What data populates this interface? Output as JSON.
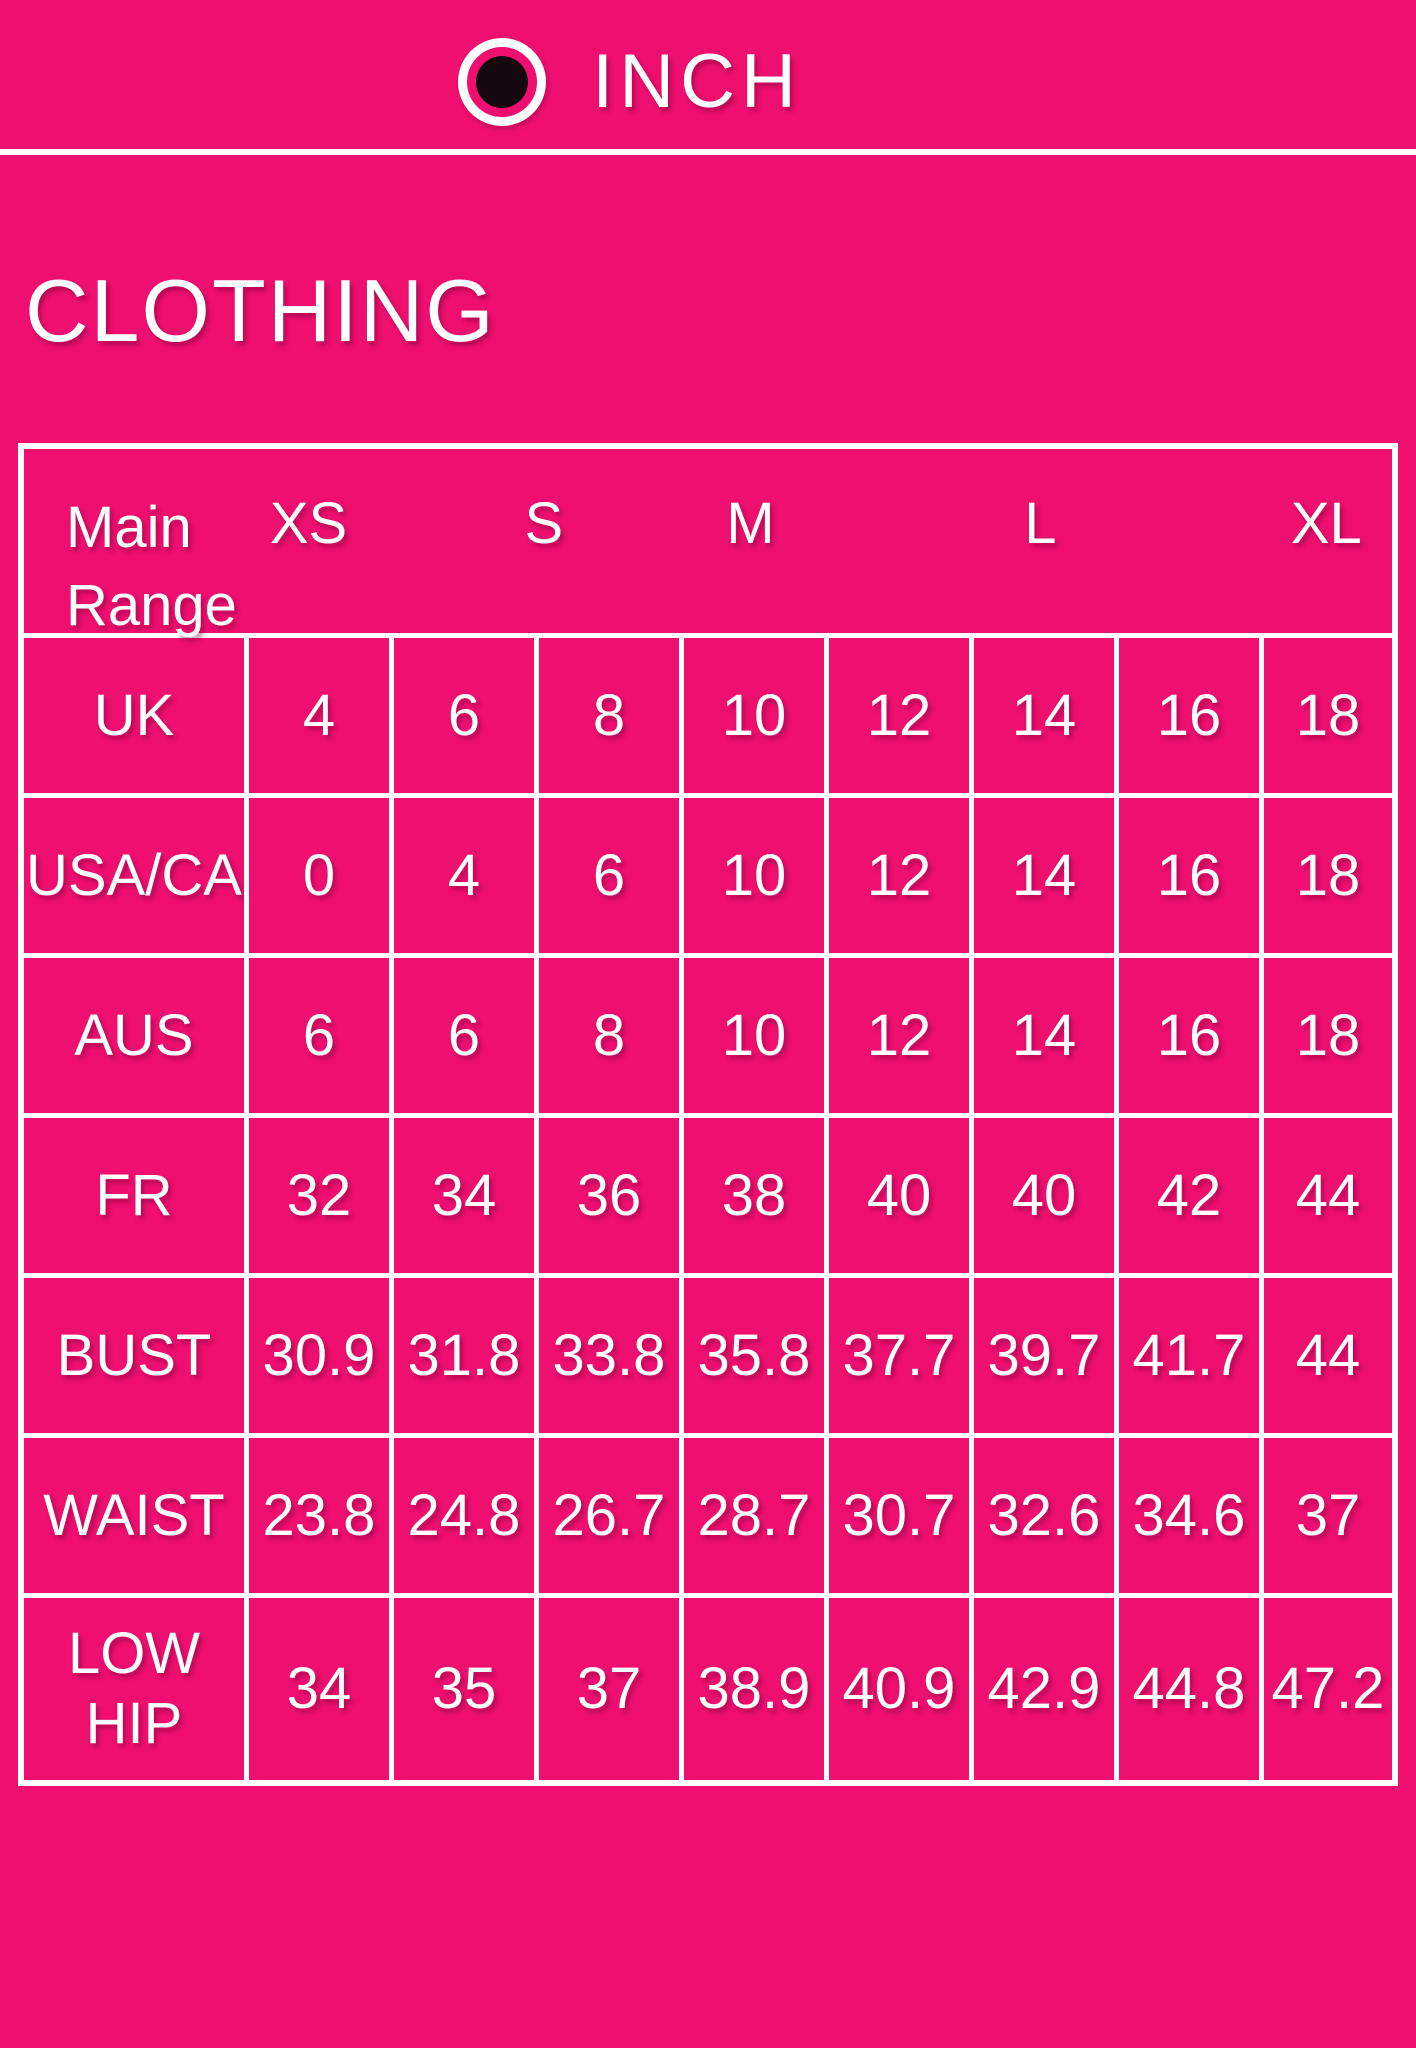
{
  "colors": {
    "background": "#EE0F6F",
    "text": "#FFFFFF",
    "lines": "#FFFFFF",
    "radio_dot": "#15090F"
  },
  "unit_toggle": {
    "label": "INCH",
    "selected": true
  },
  "section_title": "CLOTHING",
  "table": {
    "corner_label": "Main Range",
    "size_headers": [
      "XS",
      "S",
      "M",
      "L",
      "XL"
    ],
    "rows": [
      {
        "label": "UK",
        "values": [
          "4",
          "6",
          "8",
          "10",
          "12",
          "14",
          "16",
          "18"
        ]
      },
      {
        "label": "USA/CA",
        "values": [
          "0",
          "4",
          "6",
          "10",
          "12",
          "14",
          "16",
          "18"
        ]
      },
      {
        "label": "AUS",
        "values": [
          "6",
          "6",
          "8",
          "10",
          "12",
          "14",
          "16",
          "18"
        ]
      },
      {
        "label": "FR",
        "values": [
          "32",
          "34",
          "36",
          "38",
          "40",
          "40",
          "42",
          "44"
        ]
      },
      {
        "label": "BUST",
        "values": [
          "30.9",
          "31.8",
          "33.8",
          "35.8",
          "37.7",
          "39.7",
          "41.7",
          "44"
        ]
      },
      {
        "label": "WAIST",
        "values": [
          "23.8",
          "24.8",
          "26.7",
          "28.7",
          "30.7",
          "32.6",
          "34.6",
          "37"
        ]
      },
      {
        "label": "LOW HIP",
        "values": [
          "34",
          "35",
          "37",
          "38.9",
          "40.9",
          "42.9",
          "44.8",
          "47.2"
        ]
      }
    ]
  }
}
